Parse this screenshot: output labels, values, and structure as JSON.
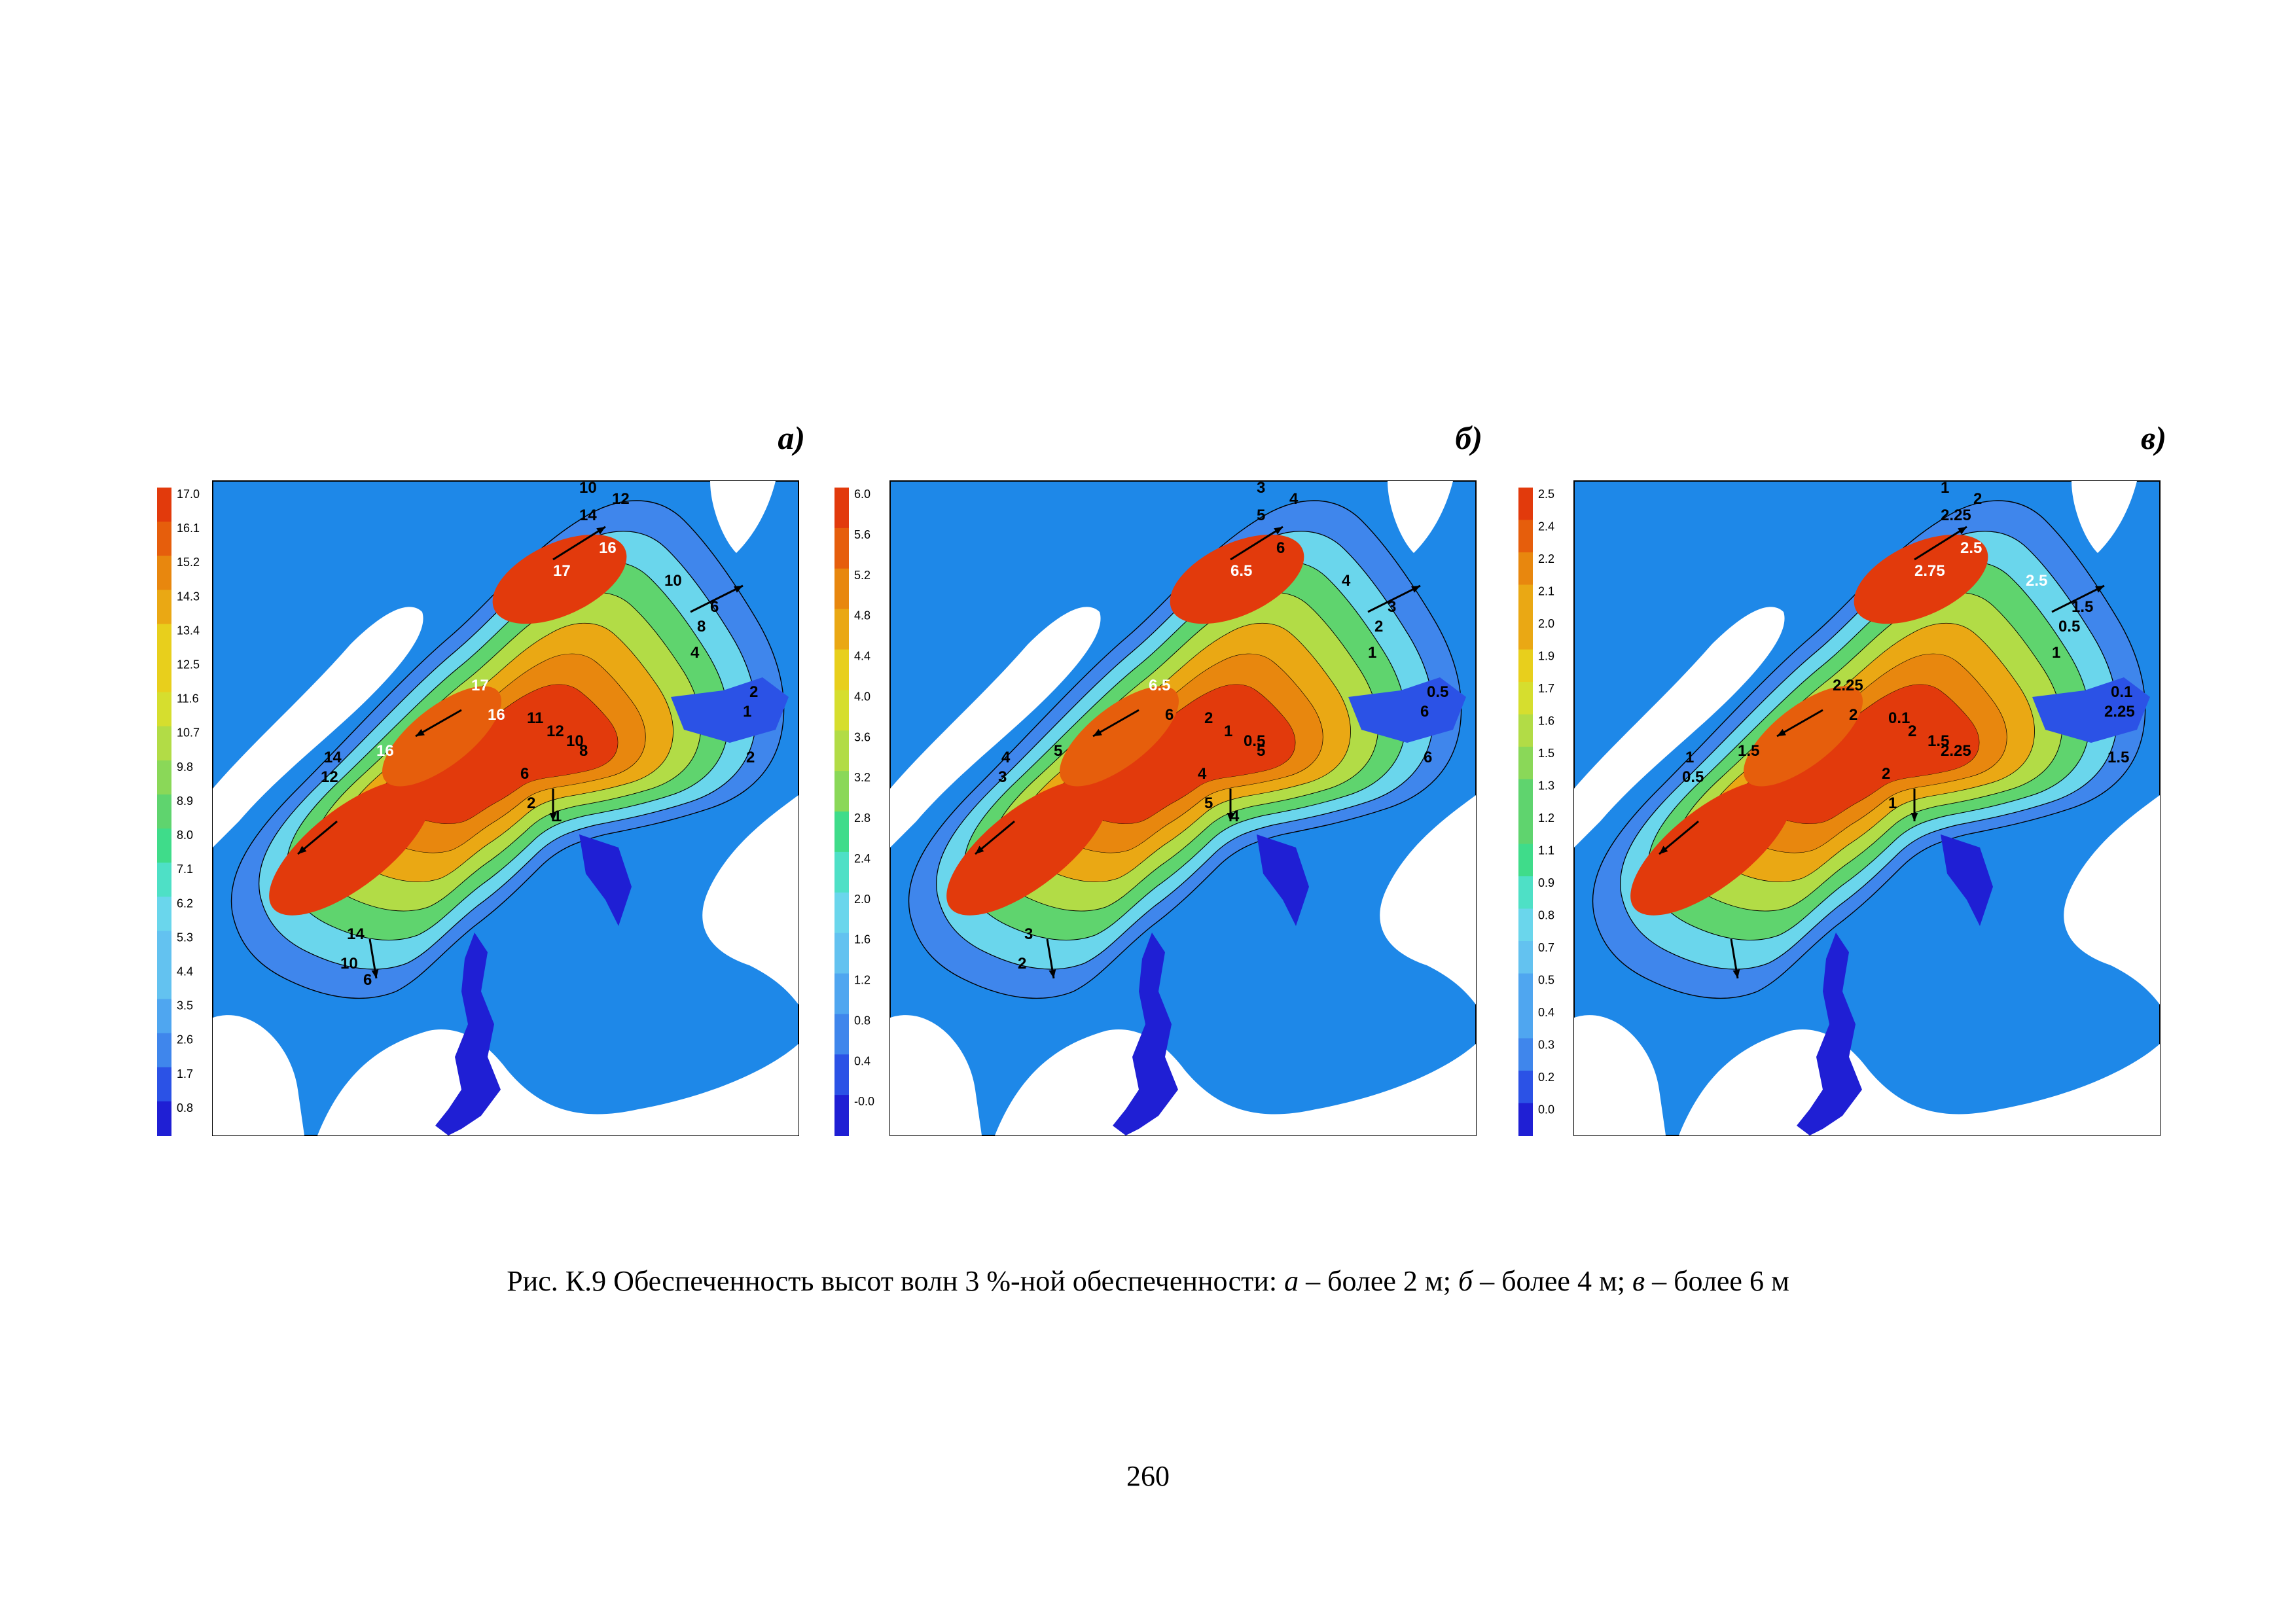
{
  "colors": {
    "ramp": [
      "#1f1fd4",
      "#2b52e6",
      "#3f86ec",
      "#4fa6f0",
      "#63c2f0",
      "#6ad6ec",
      "#4ee0c6",
      "#3fdc8a",
      "#5fd46e",
      "#8ad858",
      "#b2dc46",
      "#d6de2e",
      "#e8cf1c",
      "#eaa814",
      "#e8870e",
      "#e65e0c",
      "#e23a0c"
    ],
    "sea": "#1e88e8",
    "land": "#ffffff"
  },
  "panels": [
    {
      "label": "а)",
      "scale_labels": [
        "17.0",
        "16.1",
        "15.2",
        "14.3",
        "13.4",
        "12.5",
        "11.6",
        "10.7",
        "9.8",
        "8.9",
        "8.0",
        "7.1",
        "6.2",
        "5.3",
        "4.4",
        "3.5",
        "2.6",
        "1.7",
        "0.8"
      ],
      "contour_labels": [
        "10",
        "12",
        "14",
        "16",
        "17",
        "10",
        "6",
        "8",
        "4",
        "2",
        "1",
        "17",
        "16",
        "16",
        "14",
        "12",
        "11",
        "12",
        "10",
        "8",
        "6",
        "2",
        "2",
        "1",
        "14",
        "10",
        "6"
      ]
    },
    {
      "label": "б)",
      "scale_labels": [
        "6.0",
        "5.6",
        "5.2",
        "4.8",
        "4.4",
        "4.0",
        "3.6",
        "3.2",
        "2.8",
        "2.4",
        "2.0",
        "1.6",
        "1.2",
        "0.8",
        "0.4",
        "-0.0"
      ],
      "contour_labels": [
        "3",
        "4",
        "5",
        "6",
        "6.5",
        "4",
        "3",
        "2",
        "1",
        "0.5",
        "6",
        "6.5",
        "6",
        "5",
        "4",
        "3",
        "2",
        "1",
        "0.5",
        "5",
        "4",
        "6",
        "5",
        "4",
        "3",
        "2"
      ]
    },
    {
      "label": "в)",
      "scale_labels": [
        "2.5",
        "2.4",
        "2.2",
        "2.1",
        "2.0",
        "1.9",
        "1.7",
        "1.6",
        "1.5",
        "1.3",
        "1.2",
        "1.1",
        "0.9",
        "0.8",
        "0.7",
        "0.5",
        "0.4",
        "0.3",
        "0.2",
        "0.0"
      ],
      "contour_labels": [
        "1",
        "2",
        "2.25",
        "2.5",
        "2.75",
        "2.5",
        "1.5",
        "0.5",
        "1",
        "0.1",
        "2.25",
        "2.25",
        "2",
        "1.5",
        "1",
        "0.5",
        "0.1",
        "2",
        "1.5",
        "2.25",
        "2",
        "1.5",
        "1"
      ]
    }
  ],
  "caption": {
    "lead": "Рис. К.9 Обеспеченность высот волн 3 %-ной обеспеченности: ",
    "a": "а",
    "a_text": " – более 2 м; ",
    "b": "б",
    "b_text": " – более 4 м; ",
    "c": "в",
    "c_text": " – более 6 м"
  },
  "page_number": "260"
}
